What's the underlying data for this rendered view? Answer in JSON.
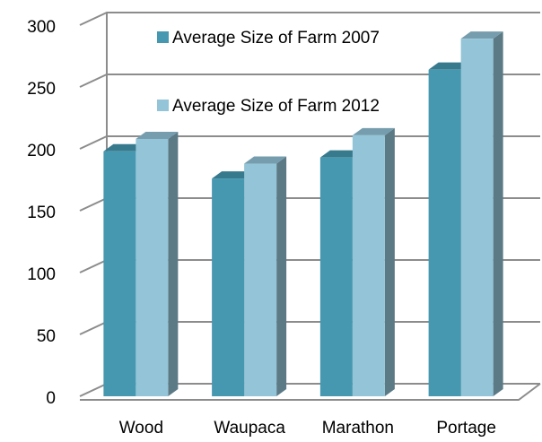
{
  "chart_data": {
    "type": "bar",
    "categories": [
      "Wood",
      "Waupaca",
      "Marathon",
      "Portage"
    ],
    "series": [
      {
        "name": "Average Size of Farm 2007",
        "color": "#4598b0",
        "values": [
          198,
          176,
          193,
          264
        ]
      },
      {
        "name": "Average Size of Farm 2012",
        "color": "#93c4d8",
        "values": [
          208,
          188,
          211,
          289
        ]
      }
    ],
    "ylim": [
      0,
      300
    ],
    "yticks": [
      0,
      50,
      100,
      150,
      200,
      250,
      300
    ],
    "grid": true
  }
}
